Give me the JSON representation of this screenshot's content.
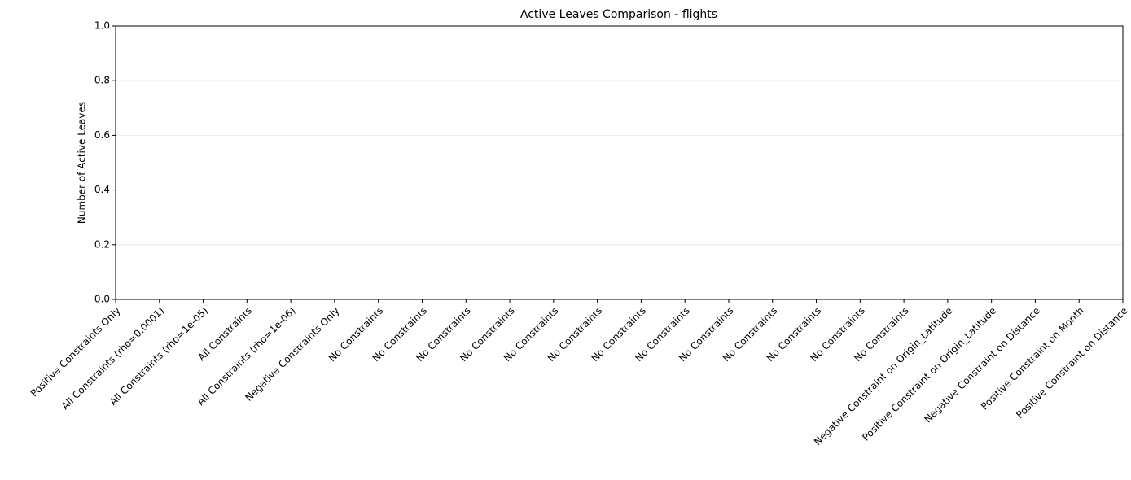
{
  "chart_data": {
    "type": "bar",
    "title": "Active Leaves Comparison - flights",
    "ylabel": "Number of Active Leaves",
    "categories": [
      "Positive Constraints Only",
      "All Constraints (rho=0.0001)",
      "All Constraints (rho=1e-05)",
      "All Constraints",
      "All Constraints (rho=1e-06)",
      "Negative Constraints Only",
      "No Constraints",
      "No Constraints",
      "No Constraints",
      "No Constraints",
      "No Constraints",
      "No Constraints",
      "No Constraints",
      "No Constraints",
      "No Constraints",
      "No Constraints",
      "No Constraints",
      "No Constraints",
      "No Constraints",
      "Negative Constraint on Origin_Latitude",
      "Positive Constraint on Origin_Latitude",
      "Negative Constraint on Distance",
      "Positive Constraint on Month",
      "Positive Constraint on Distance"
    ],
    "values": [
      0,
      0,
      0,
      0,
      0,
      0,
      0,
      0,
      0,
      0,
      0,
      0,
      0,
      0,
      0,
      0,
      0,
      0,
      0,
      0,
      0,
      0,
      0,
      0
    ],
    "color": "#1f77b4",
    "ylim": [
      0,
      1
    ],
    "yticks": [
      {
        "value": 0,
        "label": "0.0"
      },
      {
        "value": 0.2,
        "label": "0.2"
      },
      {
        "value": 0.4,
        "label": "0.4"
      },
      {
        "value": 0.6,
        "label": "0.6"
      },
      {
        "value": 0.8,
        "label": "0.8"
      },
      {
        "value": 1,
        "label": "1.0"
      }
    ],
    "grid": true
  }
}
